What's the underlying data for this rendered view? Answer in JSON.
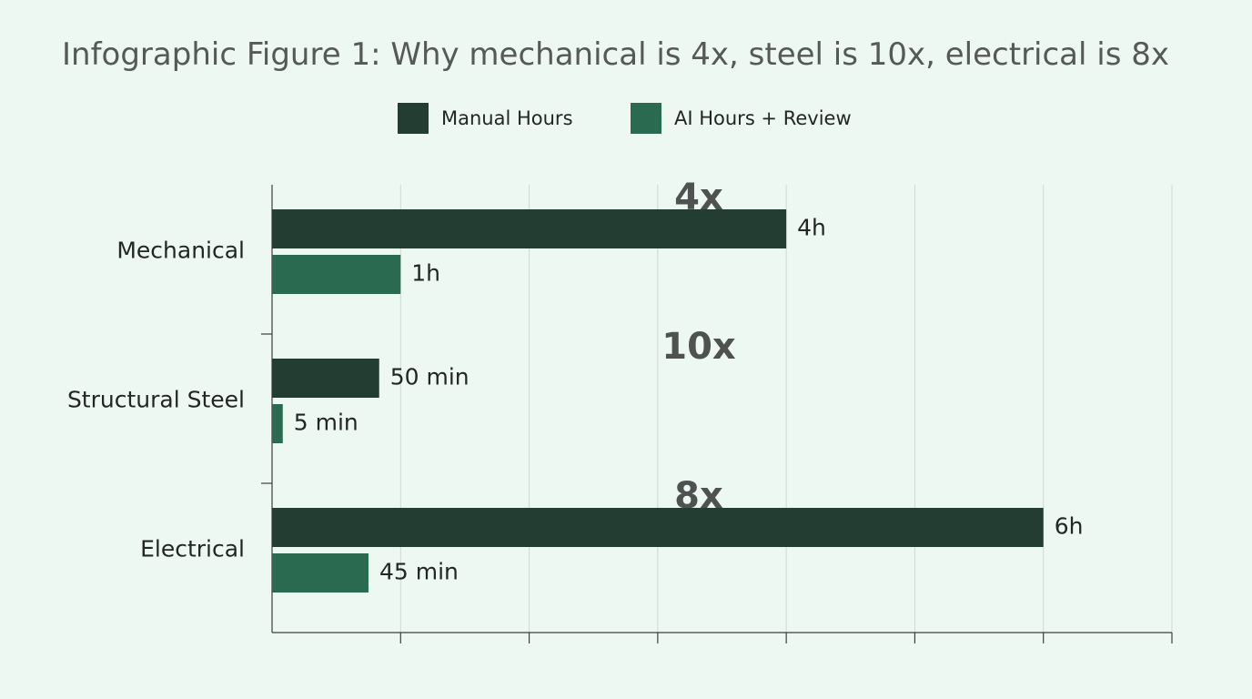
{
  "chart_data": {
    "type": "bar",
    "orientation": "horizontal",
    "title": "Infographic Figure 1: Why mechanical is 4x, steel is 10x, electrical is 8x",
    "categories": [
      "Mechanical",
      "Structural Steel",
      "Electrical"
    ],
    "series": [
      {
        "name": "Manual Hours",
        "color": "#233d33",
        "values": [
          240,
          50,
          360
        ],
        "value_labels": [
          "4h",
          "50 min",
          "6h"
        ]
      },
      {
        "name": "AI Hours + Review",
        "color": "#2a6a50",
        "values": [
          60,
          5,
          45
        ],
        "value_labels": [
          "1h",
          "5 min",
          "45 min"
        ]
      }
    ],
    "ratio_labels": [
      "4x",
      "10x",
      "8x"
    ],
    "unit": "minutes",
    "xlim": [
      0,
      420
    ],
    "x_ticks": [
      0,
      60,
      120,
      180,
      240,
      300,
      360
    ],
    "tick_labels_shown": false,
    "grid": true,
    "legend_position": "top-center",
    "xlabel": "",
    "ylabel": ""
  }
}
